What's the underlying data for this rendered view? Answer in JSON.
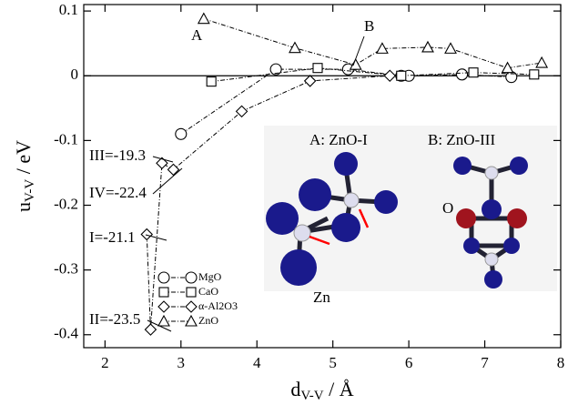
{
  "chart_data": {
    "type": "scatter",
    "y_label": "u",
    "y_label_sub": "V-V",
    "y_label_unit": " / eV",
    "x_label": "d",
    "x_label_sub": "V-V",
    "x_label_unit": " / Å",
    "xlim": [
      1.72,
      8
    ],
    "ylim": [
      -0.42,
      0.11
    ],
    "xticks": [
      2,
      3,
      4,
      5,
      6,
      7,
      8
    ],
    "yticks": [
      0.1,
      0,
      -0.1,
      -0.2,
      -0.3,
      -0.4
    ],
    "zero_line": 0,
    "series": [
      {
        "name": "MgO",
        "marker": "circle",
        "color": "#000",
        "x": [
          3.0,
          4.25,
          5.2,
          5.9,
          6.0,
          6.7,
          7.35
        ],
        "values": [
          -0.09,
          0.01,
          0.01,
          0,
          0,
          0.002,
          -0.002
        ]
      },
      {
        "name": "CaO",
        "marker": "square",
        "color": "#000",
        "x": [
          3.4,
          4.8,
          5.9,
          6.85,
          7.65
        ],
        "values": [
          -0.009,
          0.012,
          0,
          0.005,
          0.002
        ]
      },
      {
        "name": "α-Al2O3",
        "marker": "diamond",
        "color": "#000",
        "x": [
          2.55,
          2.6,
          2.75,
          2.9,
          3.8,
          4.7,
          5.75
        ],
        "values": [
          -0.245,
          -0.392,
          -0.135,
          -0.145,
          -0.055,
          -0.008,
          0
        ]
      },
      {
        "name": "ZnO",
        "marker": "triangle",
        "color": "#000",
        "x": [
          3.3,
          4.5,
          5.3,
          5.65,
          6.25,
          6.55,
          7.3,
          7.75
        ],
        "values": [
          0.088,
          0.043,
          0.017,
          0.042,
          0.044,
          0.042,
          0.012,
          0.02
        ]
      }
    ],
    "annotations": [
      "A",
      "B",
      "III=-19.3",
      "IV=-22.4",
      "I=-21.1",
      "II=-23.5"
    ],
    "inset": {
      "left_title": "A: ZnO-I",
      "right_title": "B: ZnO-III",
      "zn_label": "Zn",
      "o_label": "O"
    }
  }
}
